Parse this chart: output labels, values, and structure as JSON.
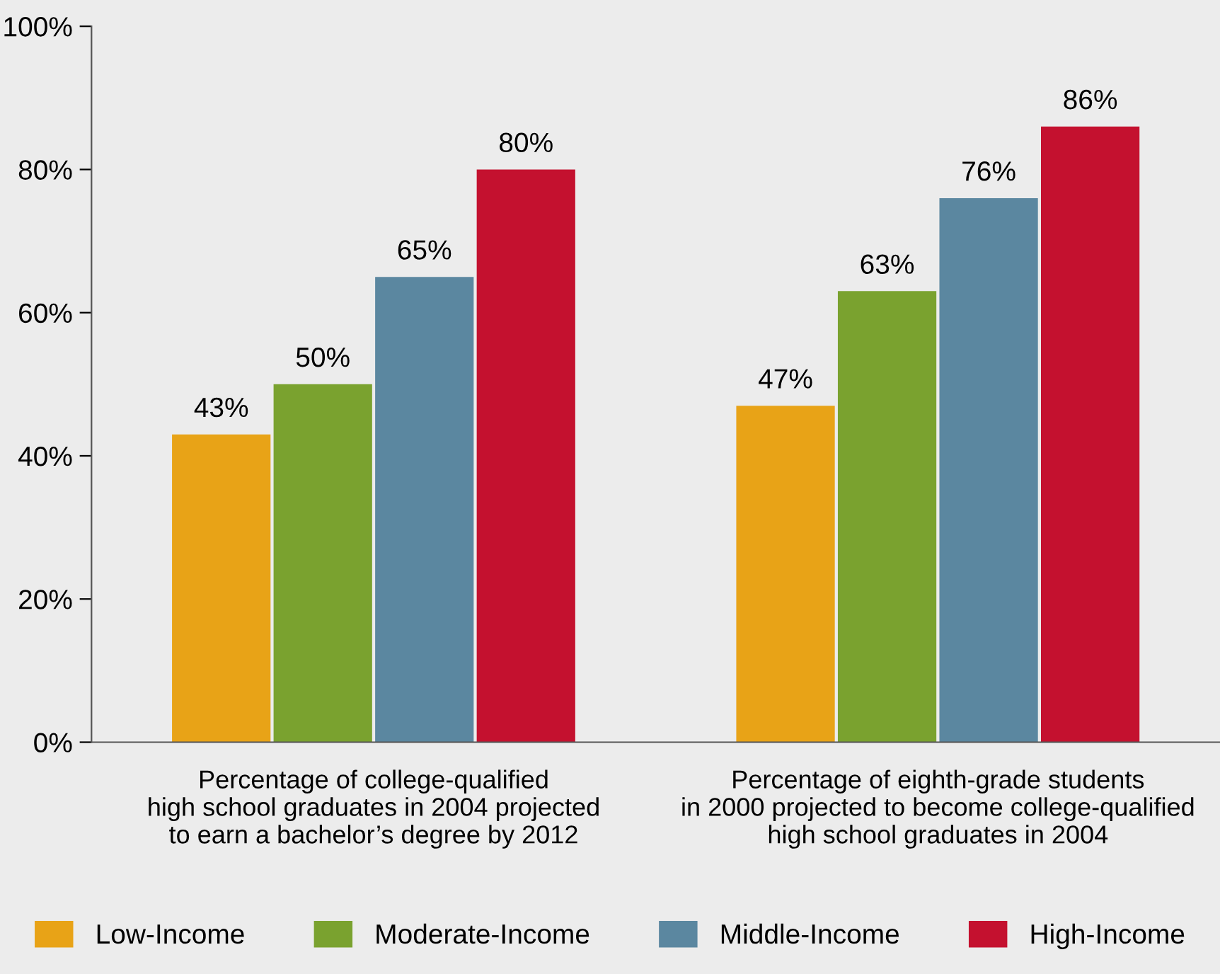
{
  "chart_data": {
    "type": "bar",
    "categories": [
      "Percentage of college-qualified\nhigh school graduates in 2004 projected\nto earn a bachelor’s degree by 2012",
      "Percentage of eighth-grade students\nin 2000 projected to become college-qualified\nhigh school graduates in 2004"
    ],
    "series": [
      {
        "name": "Low-Income",
        "color": "#e8a317",
        "values": [
          43,
          47
        ],
        "value_labels": [
          "43%",
          "47%"
        ]
      },
      {
        "name": "Moderate-Income",
        "color": "#7aa22f",
        "values": [
          50,
          63
        ],
        "value_labels": [
          "50%",
          "63%"
        ]
      },
      {
        "name": "Middle-Income",
        "color": "#5b87a0",
        "values": [
          65,
          76
        ],
        "value_labels": [
          "65%",
          "76%"
        ]
      },
      {
        "name": "High-Income",
        "color": "#c4112f",
        "values": [
          80,
          86
        ],
        "value_labels": [
          "80%",
          "86%"
        ]
      }
    ],
    "ylim": [
      0,
      100
    ],
    "yticks": [
      {
        "value": 0,
        "label": "0%"
      },
      {
        "value": 20,
        "label": "20%"
      },
      {
        "value": 40,
        "label": "40%"
      },
      {
        "value": 60,
        "label": "60%"
      },
      {
        "value": 80,
        "label": "80%"
      },
      {
        "value": 100,
        "label": "100%"
      }
    ],
    "grid": false,
    "legend": "bottom"
  }
}
